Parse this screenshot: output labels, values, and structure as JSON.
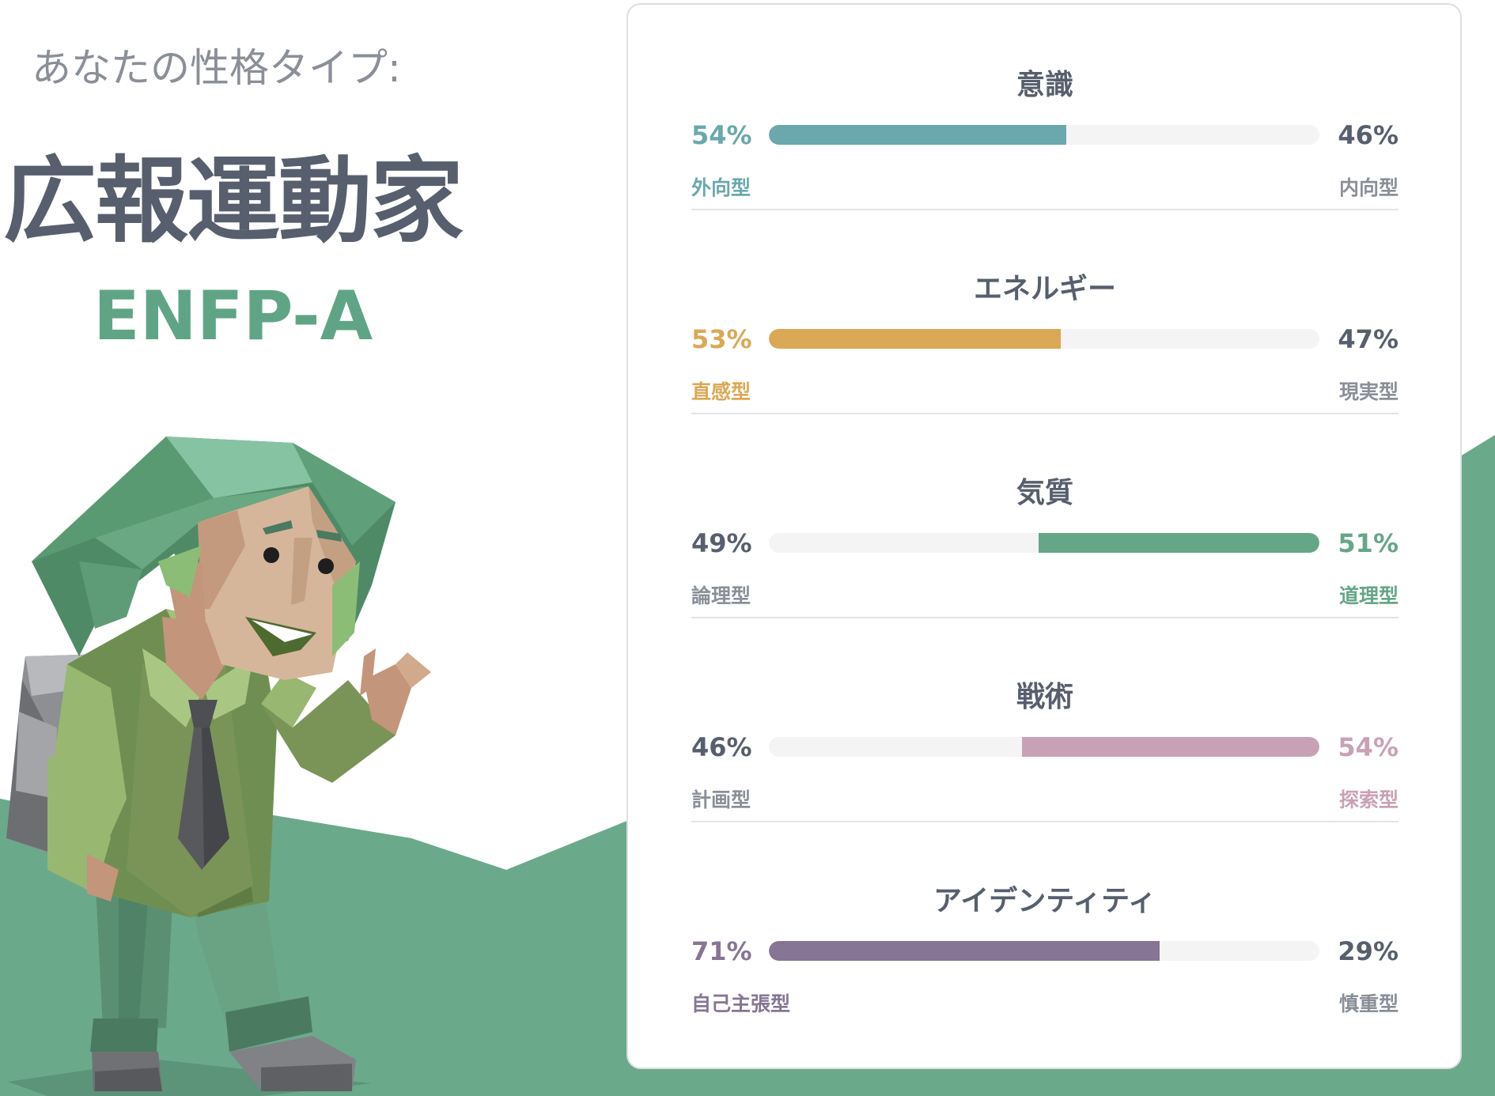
{
  "header": {
    "intro": "あなたの性格タイプ:",
    "type_name": "広報運動家",
    "type_code": "ENFP-A"
  },
  "colors": {
    "hill": "#6ba98b",
    "neutral_text": "#575f6e",
    "muted_text": "#8a8f98"
  },
  "traits": [
    {
      "title": "意識",
      "left_pct": "54%",
      "left_label": "外向型",
      "right_pct": "46%",
      "right_label": "内向型",
      "fill_percent": 54,
      "fill_side": "left",
      "color": "#6aa8ad"
    },
    {
      "title": "エネルギー",
      "left_pct": "53%",
      "left_label": "直感型",
      "right_pct": "47%",
      "right_label": "現実型",
      "fill_percent": 53,
      "fill_side": "left",
      "color": "#dba855"
    },
    {
      "title": "気質",
      "left_pct": "49%",
      "left_label": "論理型",
      "right_pct": "51%",
      "right_label": "道理型",
      "fill_percent": 51,
      "fill_side": "right",
      "color": "#65a688"
    },
    {
      "title": "戦術",
      "left_pct": "46%",
      "left_label": "計画型",
      "right_pct": "54%",
      "right_label": "探索型",
      "fill_percent": 54,
      "fill_side": "right",
      "color": "#c9a1b6"
    },
    {
      "title": "アイデンティティ",
      "left_pct": "71%",
      "left_label": "自己主張型",
      "right_pct": "29%",
      "right_label": "慎重型",
      "fill_percent": 71,
      "fill_side": "left",
      "color": "#877595"
    }
  ]
}
